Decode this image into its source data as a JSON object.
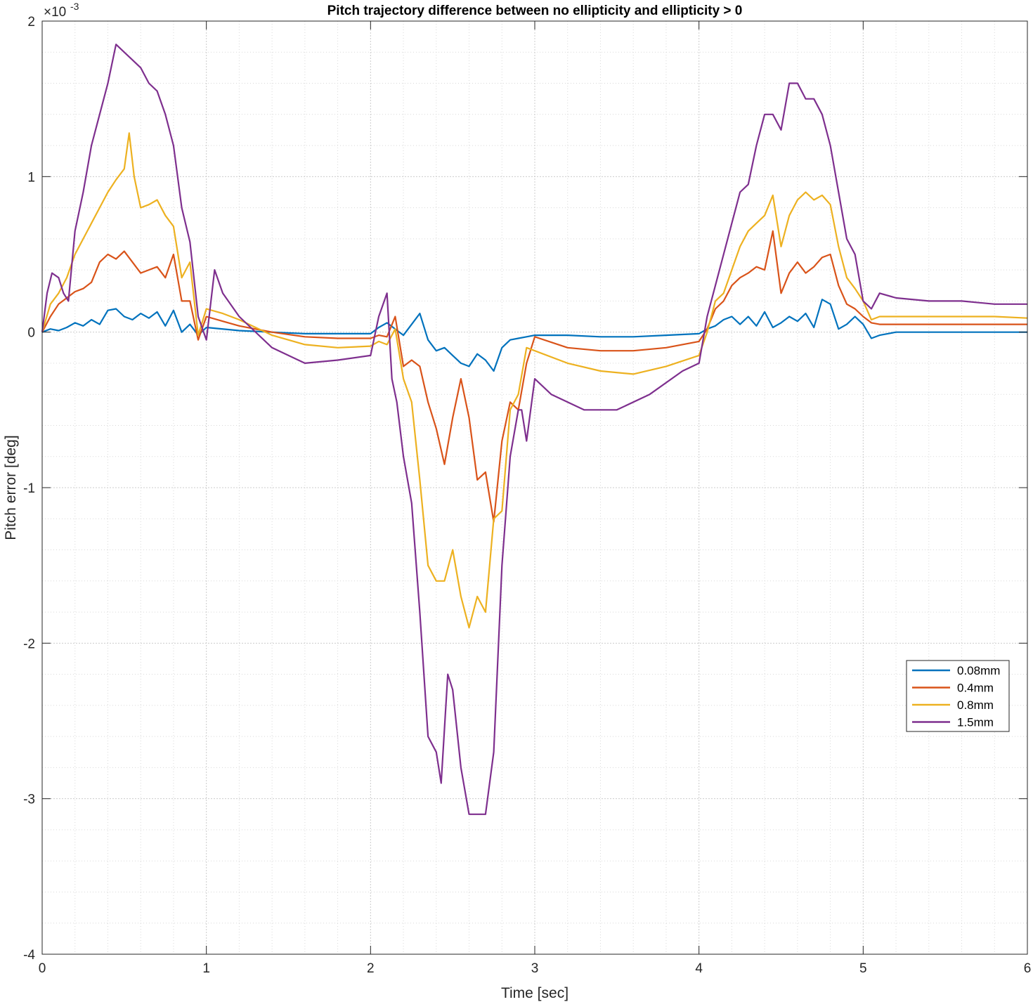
{
  "chart_data": {
    "type": "line",
    "title": "Pitch trajectory difference between no ellipticity and ellipticity > 0",
    "xlabel": "Time [sec]",
    "ylabel": "Pitch error [deg]",
    "xlim": [
      0,
      6
    ],
    "ylim": [
      -4,
      2
    ],
    "y_exponent_label": "×10",
    "y_exponent_power": "-3",
    "x_ticks": [
      0,
      1,
      2,
      3,
      4,
      5,
      6
    ],
    "y_ticks": [
      -4,
      -3,
      -2,
      -1,
      0,
      1,
      2
    ],
    "grid": true,
    "minor_grid": true,
    "legend_position": "right",
    "series": [
      {
        "name": "0.08mm",
        "color": "#0072BD",
        "x": [
          0,
          0.05,
          0.1,
          0.15,
          0.2,
          0.25,
          0.3,
          0.35,
          0.4,
          0.45,
          0.5,
          0.55,
          0.6,
          0.65,
          0.7,
          0.75,
          0.8,
          0.85,
          0.9,
          0.95,
          1.0,
          1.2,
          1.4,
          1.6,
          1.8,
          2.0,
          2.05,
          2.1,
          2.15,
          2.2,
          2.25,
          2.3,
          2.35,
          2.4,
          2.45,
          2.5,
          2.55,
          2.6,
          2.65,
          2.7,
          2.75,
          2.8,
          2.85,
          2.9,
          2.95,
          3.0,
          3.2,
          3.4,
          3.6,
          3.8,
          4.0,
          4.05,
          4.1,
          4.15,
          4.2,
          4.25,
          4.3,
          4.35,
          4.4,
          4.45,
          4.5,
          4.55,
          4.6,
          4.65,
          4.7,
          4.75,
          4.8,
          4.85,
          4.9,
          4.95,
          5.0,
          5.05,
          5.1,
          5.2,
          5.4,
          5.6,
          5.8,
          6.0
        ],
        "y": [
          0,
          2e-05,
          1e-05,
          3e-05,
          6e-05,
          4e-05,
          8e-05,
          5e-05,
          0.00014,
          0.00015,
          0.0001,
          8e-05,
          0.00012,
          9e-05,
          0.00013,
          4e-05,
          0.00014,
          0.0,
          5e-05,
          -2e-05,
          3e-05,
          1e-05,
          0.0,
          -1e-05,
          -1e-05,
          -1e-05,
          3e-05,
          6e-05,
          2e-05,
          -2e-05,
          5e-05,
          0.00012,
          -5e-05,
          -0.00012,
          -0.0001,
          -0.00015,
          -0.0002,
          -0.00022,
          -0.00014,
          -0.00018,
          -0.00025,
          -0.0001,
          -5e-05,
          -4e-05,
          -3e-05,
          -2e-05,
          -2e-05,
          -3e-05,
          -3e-05,
          -2e-05,
          -1e-05,
          2e-05,
          4e-05,
          8e-05,
          0.0001,
          5e-05,
          0.0001,
          4e-05,
          0.00013,
          3e-05,
          6e-05,
          0.0001,
          7e-05,
          0.00012,
          3e-05,
          0.00021,
          0.00018,
          2e-05,
          5e-05,
          0.0001,
          5e-05,
          -4e-05,
          -2e-05,
          0.0,
          0.0,
          0.0,
          0.0,
          0.0
        ]
      },
      {
        "name": "0.4mm",
        "color": "#D95319",
        "x": [
          0,
          0.05,
          0.1,
          0.15,
          0.2,
          0.25,
          0.3,
          0.35,
          0.4,
          0.45,
          0.5,
          0.55,
          0.6,
          0.65,
          0.7,
          0.75,
          0.8,
          0.85,
          0.9,
          0.95,
          1.0,
          1.1,
          1.2,
          1.4,
          1.6,
          1.8,
          2.0,
          2.05,
          2.1,
          2.15,
          2.2,
          2.25,
          2.3,
          2.35,
          2.4,
          2.45,
          2.5,
          2.55,
          2.6,
          2.65,
          2.7,
          2.75,
          2.8,
          2.85,
          2.9,
          2.95,
          3.0,
          3.2,
          3.4,
          3.6,
          3.8,
          4.0,
          4.05,
          4.1,
          4.15,
          4.2,
          4.25,
          4.3,
          4.35,
          4.4,
          4.45,
          4.5,
          4.55,
          4.6,
          4.65,
          4.7,
          4.75,
          4.8,
          4.85,
          4.9,
          4.95,
          5.0,
          5.05,
          5.1,
          5.2,
          5.4,
          5.6,
          5.8,
          6.0
        ],
        "y": [
          0,
          0.0001,
          0.00018,
          0.00022,
          0.00026,
          0.00028,
          0.00032,
          0.00045,
          0.0005,
          0.00047,
          0.00052,
          0.00045,
          0.00038,
          0.0004,
          0.00042,
          0.00035,
          0.0005,
          0.0002,
          0.0002,
          -5e-05,
          0.0001,
          7e-05,
          4e-05,
          0.0,
          -3e-05,
          -4e-05,
          -4e-05,
          -2e-05,
          -3e-05,
          0.0001,
          -0.00022,
          -0.00018,
          -0.00022,
          -0.00045,
          -0.00062,
          -0.00085,
          -0.00055,
          -0.0003,
          -0.00055,
          -0.00095,
          -0.0009,
          -0.00122,
          -0.0007,
          -0.00045,
          -0.0005,
          -0.0002,
          -3e-05,
          -0.0001,
          -0.00012,
          -0.00012,
          -0.0001,
          -6e-05,
          2e-05,
          0.00015,
          0.0002,
          0.0003,
          0.00035,
          0.00038,
          0.00042,
          0.0004,
          0.00065,
          0.00025,
          0.00038,
          0.00045,
          0.00038,
          0.00042,
          0.00048,
          0.0005,
          0.0003,
          0.00018,
          0.00015,
          0.0001,
          6e-05,
          5e-05,
          5e-05,
          5e-05,
          5e-05,
          5e-05,
          5e-05
        ]
      },
      {
        "name": "0.8mm",
        "color": "#EDB120",
        "x": [
          0,
          0.05,
          0.1,
          0.15,
          0.2,
          0.25,
          0.3,
          0.35,
          0.4,
          0.45,
          0.5,
          0.53,
          0.56,
          0.6,
          0.65,
          0.7,
          0.75,
          0.8,
          0.85,
          0.9,
          0.95,
          1.0,
          1.1,
          1.2,
          1.4,
          1.6,
          1.8,
          2.0,
          2.05,
          2.1,
          2.15,
          2.2,
          2.25,
          2.3,
          2.35,
          2.4,
          2.45,
          2.5,
          2.55,
          2.6,
          2.65,
          2.7,
          2.75,
          2.8,
          2.85,
          2.9,
          2.95,
          3.0,
          3.2,
          3.4,
          3.6,
          3.8,
          4.0,
          4.05,
          4.1,
          4.15,
          4.2,
          4.25,
          4.3,
          4.35,
          4.4,
          4.45,
          4.5,
          4.55,
          4.6,
          4.65,
          4.7,
          4.75,
          4.8,
          4.85,
          4.9,
          4.95,
          5.0,
          5.05,
          5.1,
          5.2,
          5.4,
          5.6,
          5.8,
          6.0
        ],
        "y": [
          0,
          0.00018,
          0.00025,
          0.00035,
          0.0005,
          0.0006,
          0.0007,
          0.0008,
          0.0009,
          0.00098,
          0.00105,
          0.00128,
          0.001,
          0.0008,
          0.00082,
          0.00085,
          0.00075,
          0.00068,
          0.00035,
          0.00045,
          -2e-05,
          0.00015,
          0.00012,
          8e-05,
          -2e-05,
          -8e-05,
          -0.0001,
          -9e-05,
          -6e-05,
          -8e-05,
          2e-05,
          -0.0003,
          -0.00045,
          -0.00095,
          -0.0015,
          -0.0016,
          -0.0016,
          -0.0014,
          -0.0017,
          -0.0019,
          -0.0017,
          -0.0018,
          -0.0012,
          -0.00115,
          -0.0005,
          -0.0004,
          -0.0001,
          -0.00012,
          -0.0002,
          -0.00025,
          -0.00027,
          -0.00022,
          -0.00015,
          0.0,
          0.0002,
          0.00025,
          0.0004,
          0.00055,
          0.00065,
          0.0007,
          0.00075,
          0.00088,
          0.00055,
          0.00075,
          0.00085,
          0.0009,
          0.00085,
          0.00088,
          0.00082,
          0.00055,
          0.00035,
          0.00028,
          0.0002,
          8e-05,
          0.0001,
          0.0001,
          0.0001,
          0.0001,
          0.0001,
          9e-05
        ]
      },
      {
        "name": "1.5mm",
        "color": "#7E2F8E",
        "x": [
          0,
          0.03,
          0.06,
          0.1,
          0.13,
          0.16,
          0.2,
          0.25,
          0.3,
          0.35,
          0.4,
          0.45,
          0.5,
          0.55,
          0.6,
          0.65,
          0.7,
          0.75,
          0.8,
          0.85,
          0.9,
          0.95,
          1.0,
          1.05,
          1.1,
          1.2,
          1.4,
          1.6,
          1.8,
          2.0,
          2.05,
          2.1,
          2.13,
          2.16,
          2.2,
          2.25,
          2.3,
          2.35,
          2.4,
          2.43,
          2.47,
          2.5,
          2.55,
          2.6,
          2.65,
          2.7,
          2.75,
          2.8,
          2.85,
          2.9,
          2.92,
          2.95,
          3.0,
          3.1,
          3.3,
          3.5,
          3.7,
          3.9,
          4.0,
          4.05,
          4.1,
          4.15,
          4.2,
          4.25,
          4.3,
          4.35,
          4.4,
          4.45,
          4.5,
          4.55,
          4.6,
          4.65,
          4.7,
          4.75,
          4.8,
          4.85,
          4.9,
          4.95,
          5.0,
          5.05,
          5.1,
          5.2,
          5.4,
          5.6,
          5.8,
          6.0
        ],
        "y": [
          0,
          0.00025,
          0.00038,
          0.00035,
          0.00025,
          0.0002,
          0.00065,
          0.0009,
          0.0012,
          0.0014,
          0.0016,
          0.00185,
          0.0018,
          0.00175,
          0.0017,
          0.0016,
          0.00155,
          0.0014,
          0.0012,
          0.0008,
          0.00058,
          0.0001,
          -5e-05,
          0.0004,
          0.00025,
          0.0001,
          -0.0001,
          -0.0002,
          -0.00018,
          -0.00015,
          0.0001,
          0.00025,
          -0.0003,
          -0.00045,
          -0.0008,
          -0.0011,
          -0.0018,
          -0.0026,
          -0.0027,
          -0.0029,
          -0.0022,
          -0.0023,
          -0.0028,
          -0.0031,
          -0.0031,
          -0.0031,
          -0.0027,
          -0.0015,
          -0.0008,
          -0.0005,
          -0.0005,
          -0.0007,
          -0.0003,
          -0.0004,
          -0.0005,
          -0.0005,
          -0.0004,
          -0.00025,
          -0.0002,
          0.0001,
          0.0003,
          0.0005,
          0.0007,
          0.0009,
          0.00095,
          0.0012,
          0.0014,
          0.0014,
          0.0013,
          0.0016,
          0.0016,
          0.0015,
          0.0015,
          0.0014,
          0.0012,
          0.0009,
          0.0006,
          0.0005,
          0.0002,
          0.00015,
          0.00025,
          0.00022,
          0.0002,
          0.0002,
          0.00018,
          0.00018
        ]
      }
    ]
  }
}
